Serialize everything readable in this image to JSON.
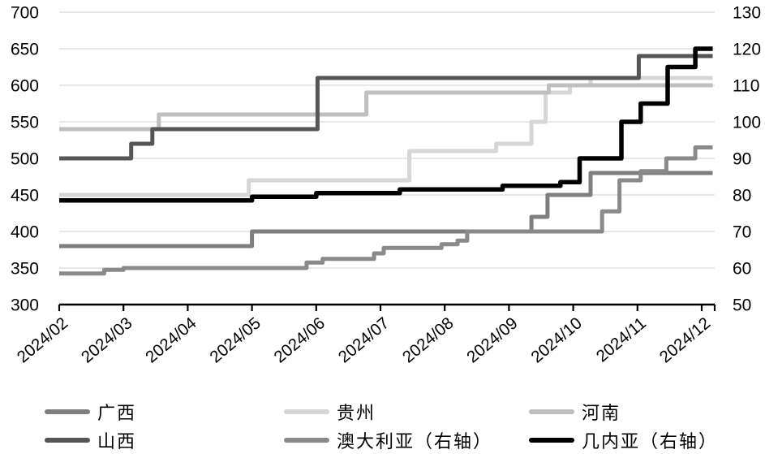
{
  "chart_data": {
    "type": "line",
    "title": "",
    "style": "step-after",
    "colors": {
      "background": "#ffffff",
      "gridline": "#d9d9d9",
      "axis_line": "#000000",
      "tick_label": "#000000"
    },
    "left_axis": {
      "min": 300,
      "max": 700,
      "step": 50,
      "ticks": [
        700,
        650,
        600,
        550,
        500,
        450,
        400,
        350,
        300
      ]
    },
    "right_axis": {
      "min": 50,
      "max": 130,
      "step": 10,
      "ticks": [
        130,
        120,
        110,
        100,
        90,
        80,
        70,
        60,
        50
      ]
    },
    "x_axis": {
      "labels": [
        "2024/02",
        "2024/03",
        "2024/04",
        "2024/05",
        "2024/06",
        "2024/07",
        "2024/08",
        "2024/09",
        "2024/10",
        "2024/11",
        "2024/12"
      ],
      "label_rotation_deg": -40,
      "domain": [
        2,
        12.17
      ]
    },
    "series": [
      {
        "id": "guizhou",
        "name": "贵州",
        "axis": "left",
        "color": "#d6d6d6",
        "width": 5,
        "points": [
          [
            2,
            450
          ],
          [
            4.95,
            470
          ],
          [
            7.45,
            510
          ],
          [
            8.8,
            520
          ],
          [
            9.35,
            550
          ],
          [
            9.57,
            590
          ],
          [
            9.95,
            600
          ],
          [
            10.27,
            610
          ],
          [
            12.17,
            610
          ]
        ]
      },
      {
        "id": "henan",
        "name": "河南",
        "axis": "left",
        "color": "#bfbfbf",
        "width": 5,
        "points": [
          [
            2,
            540
          ],
          [
            3.55,
            560
          ],
          [
            6.78,
            590
          ],
          [
            9.62,
            600
          ],
          [
            12.17,
            600
          ]
        ]
      },
      {
        "id": "guangxi",
        "name": "广西",
        "axis": "left",
        "color": "#7f7f7f",
        "width": 5,
        "points": [
          [
            2,
            380
          ],
          [
            5,
            400
          ],
          [
            9.35,
            420
          ],
          [
            9.6,
            450
          ],
          [
            10.27,
            480
          ],
          [
            12.17,
            480
          ]
        ]
      },
      {
        "id": "australia",
        "name": "澳大利亚",
        "axis": "right",
        "color": "#8a8a8a",
        "width": 5,
        "points": [
          [
            2,
            58.5
          ],
          [
            2.7,
            59.5
          ],
          [
            3,
            60
          ],
          [
            5.85,
            61.5
          ],
          [
            6.1,
            62.5
          ],
          [
            6.9,
            64
          ],
          [
            7.05,
            65.5
          ],
          [
            7.95,
            66.5
          ],
          [
            8.2,
            67.5
          ],
          [
            8.35,
            70
          ],
          [
            10.45,
            75.5
          ],
          [
            10.72,
            84
          ],
          [
            11.05,
            86.5
          ],
          [
            11.45,
            90
          ],
          [
            11.9,
            93
          ],
          [
            12.17,
            93
          ]
        ]
      },
      {
        "id": "shanxi",
        "name": "山西",
        "axis": "left",
        "color": "#565656",
        "width": 5,
        "points": [
          [
            2,
            500
          ],
          [
            3.12,
            520
          ],
          [
            3.45,
            540
          ],
          [
            6.02,
            610
          ],
          [
            11.02,
            640
          ],
          [
            12.17,
            640
          ]
        ]
      },
      {
        "id": "guinea",
        "name": "几内亚",
        "axis": "right",
        "color": "#000000",
        "width": 5.5,
        "points": [
          [
            2,
            78.5
          ],
          [
            5,
            79.5
          ],
          [
            6,
            80.5
          ],
          [
            7.3,
            81.5
          ],
          [
            8.9,
            82.5
          ],
          [
            9.8,
            83.5
          ],
          [
            10.1,
            90
          ],
          [
            10.75,
            100
          ],
          [
            11.05,
            105
          ],
          [
            11.47,
            115
          ],
          [
            11.9,
            120
          ],
          [
            12.17,
            120
          ]
        ]
      }
    ],
    "legend": [
      {
        "series": "guangxi",
        "label": "广西"
      },
      {
        "series": "guizhou",
        "label": "贵州"
      },
      {
        "series": "henan",
        "label": "河南"
      },
      {
        "series": "shanxi",
        "label": "山西"
      },
      {
        "series": "australia",
        "label": "澳大利亚（右轴）"
      },
      {
        "series": "guinea",
        "label": "几内亚（右轴）"
      }
    ],
    "legend_position": "bottom"
  }
}
